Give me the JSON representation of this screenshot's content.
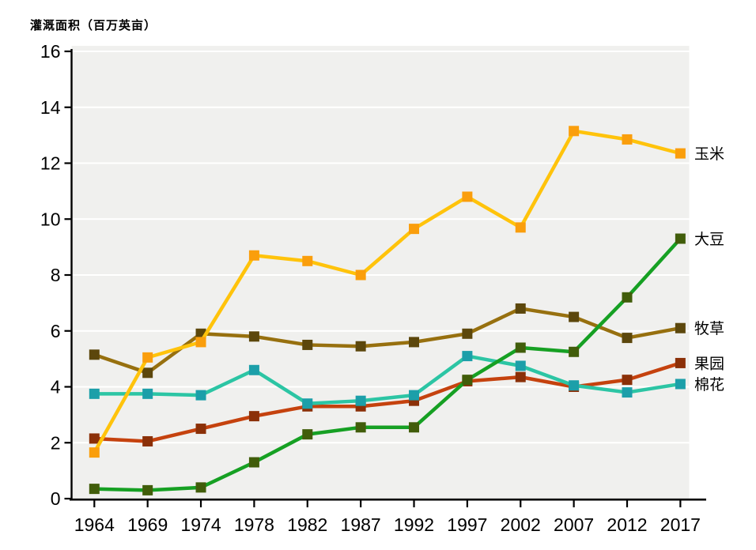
{
  "title": "灌溉面积（百万英亩）",
  "chart_data": {
    "type": "line",
    "title": "灌溉面积（百万英亩）",
    "xlabel": "",
    "ylabel": "灌溉面积（百万英亩）",
    "categories": [
      "1964",
      "1969",
      "1974",
      "1978",
      "1982",
      "1987",
      "1992",
      "1997",
      "2002",
      "2007",
      "2012",
      "2017"
    ],
    "ylim": [
      0,
      16
    ],
    "y_ticks": [
      0,
      2,
      4,
      6,
      8,
      10,
      12,
      14,
      16
    ],
    "grid": "horizontal-white-on-gray",
    "legend_position": "right-end-of-line-labels",
    "marker_shape": "square",
    "series": [
      {
        "id": "corn",
        "name": "玉米",
        "line_color": "#FFC30B",
        "marker_color": "#FA9E0C",
        "z": 3,
        "values": [
          1.65,
          5.05,
          5.6,
          8.7,
          8.5,
          8.0,
          9.65,
          10.8,
          9.7,
          13.15,
          12.85,
          12.35
        ]
      },
      {
        "id": "soybean",
        "name": "大豆",
        "line_color": "#16A023",
        "marker_color": "#415D0A",
        "z": 4,
        "values": [
          0.35,
          0.3,
          0.4,
          1.3,
          2.3,
          2.55,
          2.55,
          4.25,
          5.4,
          5.25,
          7.2,
          9.3
        ]
      },
      {
        "id": "hay",
        "name": "牧草",
        "line_color": "#97700F",
        "marker_color": "#5C470C",
        "z": 2,
        "values": [
          5.15,
          4.5,
          5.9,
          5.8,
          5.5,
          5.45,
          5.6,
          5.9,
          6.8,
          6.5,
          5.75,
          6.1
        ]
      },
      {
        "id": "orchard",
        "name": "果园",
        "line_color": "#C5420E",
        "marker_color": "#8B3008",
        "z": 0,
        "values": [
          2.15,
          2.05,
          2.5,
          2.95,
          3.3,
          3.3,
          3.5,
          4.2,
          4.35,
          4.0,
          4.25,
          4.85
        ]
      },
      {
        "id": "cotton",
        "name": "棉花",
        "line_color": "#2CC5A4",
        "marker_color": "#1C9FA9",
        "z": 1,
        "values": [
          3.75,
          3.75,
          3.7,
          4.6,
          3.4,
          3.5,
          3.7,
          5.1,
          4.75,
          4.05,
          3.8,
          4.1
        ]
      }
    ]
  },
  "colors": {
    "plot_background": "#F0F0EE",
    "gridline": "#FFFFFF",
    "axis": "#000000",
    "text": "#000000"
  }
}
